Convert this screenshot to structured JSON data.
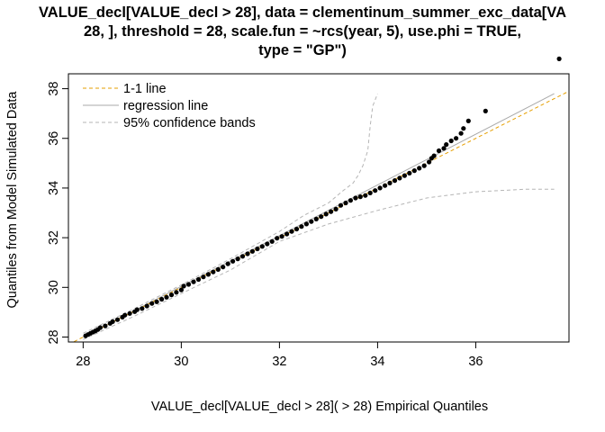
{
  "chart_data": {
    "type": "scatter",
    "title_lines": [
      "VALUE_decl[VALUE_decl > 28], data = clementinum_summer_exc_data[VA",
      "28, ], threshold = 28, scale.fun = ~rcs(year, 5), use.phi = TRUE,",
      "type = \"GP\")"
    ],
    "xlabel": "VALUE_decl[VALUE_decl > 28]( > 28) Empirical Quantiles",
    "ylabel": "Quantiles from Model Simulated Data",
    "xlim": [
      27.7,
      37.9
    ],
    "ylim": [
      27.8,
      38.6
    ],
    "xticks": [
      "28",
      "30",
      "32",
      "34",
      "36"
    ],
    "yticks": [
      "28",
      "30",
      "32",
      "34",
      "36",
      "38"
    ],
    "legend": {
      "position": "top-left",
      "entries": [
        "1-1 line",
        "regression line",
        "95% confidence bands"
      ]
    },
    "colors": {
      "one_to_one": "#E69F00",
      "regression": "#A9A9A9",
      "bands": "#B5B5B5",
      "points": "#000000"
    },
    "one_to_one_line": [
      [
        27.7,
        27.7
      ],
      [
        37.9,
        37.9
      ]
    ],
    "regression_line": [
      [
        28.0,
        28.0
      ],
      [
        37.6,
        37.8
      ]
    ],
    "upper_band": [
      [
        28.0,
        28.15
      ],
      [
        29.0,
        29.1
      ],
      [
        30.0,
        30.1
      ],
      [
        31.0,
        31.15
      ],
      [
        32.0,
        32.25
      ],
      [
        32.5,
        32.9
      ],
      [
        33.0,
        33.4
      ],
      [
        33.3,
        33.9
      ],
      [
        33.5,
        34.2
      ],
      [
        33.6,
        34.5
      ],
      [
        33.7,
        34.9
      ],
      [
        33.8,
        35.5
      ],
      [
        33.85,
        36.5
      ],
      [
        33.9,
        37.3
      ],
      [
        34.0,
        37.8
      ]
    ],
    "lower_band": [
      [
        28.0,
        27.9
      ],
      [
        29.0,
        28.8
      ],
      [
        30.0,
        29.75
      ],
      [
        31.0,
        30.7
      ],
      [
        32.0,
        31.85
      ],
      [
        33.0,
        32.55
      ],
      [
        34.0,
        33.1
      ],
      [
        35.0,
        33.6
      ],
      [
        36.0,
        33.85
      ],
      [
        37.0,
        33.95
      ],
      [
        37.6,
        33.95
      ]
    ],
    "points": [
      [
        28.05,
        28.05
      ],
      [
        28.1,
        28.1
      ],
      [
        28.15,
        28.15
      ],
      [
        28.2,
        28.2
      ],
      [
        28.25,
        28.25
      ],
      [
        28.3,
        28.3
      ],
      [
        28.35,
        28.38
      ],
      [
        28.45,
        28.45
      ],
      [
        28.55,
        28.55
      ],
      [
        28.6,
        28.62
      ],
      [
        28.7,
        28.7
      ],
      [
        28.8,
        28.8
      ],
      [
        28.85,
        28.88
      ],
      [
        28.95,
        28.95
      ],
      [
        29.05,
        29.02
      ],
      [
        29.1,
        29.1
      ],
      [
        29.2,
        29.15
      ],
      [
        29.3,
        29.25
      ],
      [
        29.4,
        29.35
      ],
      [
        29.5,
        29.42
      ],
      [
        29.6,
        29.52
      ],
      [
        29.7,
        29.6
      ],
      [
        29.8,
        29.7
      ],
      [
        29.9,
        29.8
      ],
      [
        30.0,
        29.9
      ],
      [
        30.05,
        30.05
      ],
      [
        30.15,
        30.12
      ],
      [
        30.25,
        30.22
      ],
      [
        30.35,
        30.32
      ],
      [
        30.45,
        30.42
      ],
      [
        30.55,
        30.52
      ],
      [
        30.65,
        30.62
      ],
      [
        30.75,
        30.72
      ],
      [
        30.85,
        30.82
      ],
      [
        30.95,
        30.95
      ],
      [
        31.05,
        31.05
      ],
      [
        31.15,
        31.15
      ],
      [
        31.25,
        31.25
      ],
      [
        31.35,
        31.35
      ],
      [
        31.45,
        31.45
      ],
      [
        31.55,
        31.55
      ],
      [
        31.65,
        31.65
      ],
      [
        31.75,
        31.75
      ],
      [
        31.85,
        31.85
      ],
      [
        31.95,
        31.98
      ],
      [
        32.05,
        32.05
      ],
      [
        32.15,
        32.15
      ],
      [
        32.25,
        32.25
      ],
      [
        32.35,
        32.35
      ],
      [
        32.45,
        32.45
      ],
      [
        32.55,
        32.55
      ],
      [
        32.65,
        32.65
      ],
      [
        32.75,
        32.75
      ],
      [
        32.85,
        32.85
      ],
      [
        32.95,
        32.95
      ],
      [
        33.05,
        33.05
      ],
      [
        33.15,
        33.15
      ],
      [
        33.25,
        33.3
      ],
      [
        33.35,
        33.4
      ],
      [
        33.45,
        33.5
      ],
      [
        33.55,
        33.6
      ],
      [
        33.65,
        33.65
      ],
      [
        33.75,
        33.7
      ],
      [
        33.85,
        33.8
      ],
      [
        33.95,
        33.9
      ],
      [
        34.05,
        34.0
      ],
      [
        34.15,
        34.1
      ],
      [
        34.25,
        34.2
      ],
      [
        34.35,
        34.3
      ],
      [
        34.45,
        34.4
      ],
      [
        34.55,
        34.5
      ],
      [
        34.65,
        34.6
      ],
      [
        34.75,
        34.7
      ],
      [
        34.85,
        34.8
      ],
      [
        34.95,
        34.9
      ],
      [
        35.05,
        35.05
      ],
      [
        35.1,
        35.2
      ],
      [
        35.15,
        35.3
      ],
      [
        35.25,
        35.5
      ],
      [
        35.35,
        35.6
      ],
      [
        35.4,
        35.75
      ],
      [
        35.5,
        35.9
      ],
      [
        35.6,
        36.0
      ],
      [
        35.7,
        36.2
      ],
      [
        35.75,
        36.4
      ],
      [
        35.85,
        36.7
      ],
      [
        36.2,
        37.1
      ],
      [
        37.7,
        39.2
      ]
    ]
  }
}
